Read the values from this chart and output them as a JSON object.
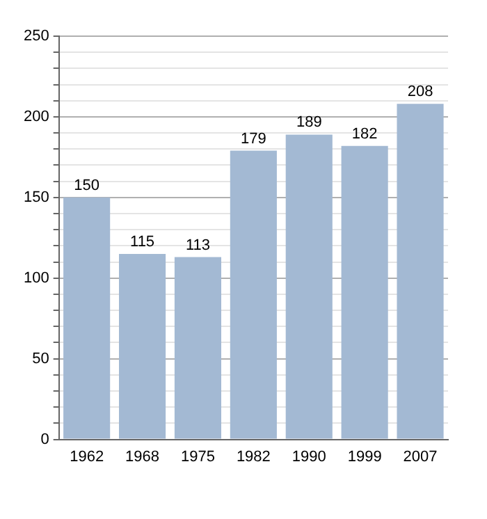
{
  "chart_data": {
    "type": "bar",
    "categories": [
      "1962",
      "1968",
      "1975",
      "1982",
      "1990",
      "1999",
      "2007"
    ],
    "values": [
      150,
      115,
      113,
      179,
      189,
      182,
      208
    ],
    "color": "#a3b9d3",
    "data_labels": true,
    "grid": "y",
    "legend": false,
    "ylim": [
      0,
      250
    ],
    "yticks": [
      0,
      {
        "value": 10,
        "label": null
      },
      {
        "value": 20,
        "label": null
      },
      {
        "value": 30,
        "label": null
      },
      {
        "value": 40,
        "label": null
      },
      50,
      {
        "value": 60,
        "label": null
      },
      {
        "value": 70,
        "label": null
      },
      {
        "value": 80,
        "label": null
      },
      {
        "value": 90,
        "label": null
      },
      100,
      {
        "value": 110,
        "label": null
      },
      {
        "value": 120,
        "label": null
      },
      {
        "value": 130,
        "label": null
      },
      {
        "value": 140,
        "label": null
      },
      150,
      {
        "value": 160,
        "label": null
      },
      {
        "value": 170,
        "label": null
      },
      {
        "value": 180,
        "label": null
      },
      {
        "value": 190,
        "label": null
      },
      200,
      {
        "value": 210,
        "label": null
      },
      {
        "value": 220,
        "label": null
      },
      {
        "value": 230,
        "label": null
      },
      {
        "value": 240,
        "label": null
      },
      250
    ]
  }
}
